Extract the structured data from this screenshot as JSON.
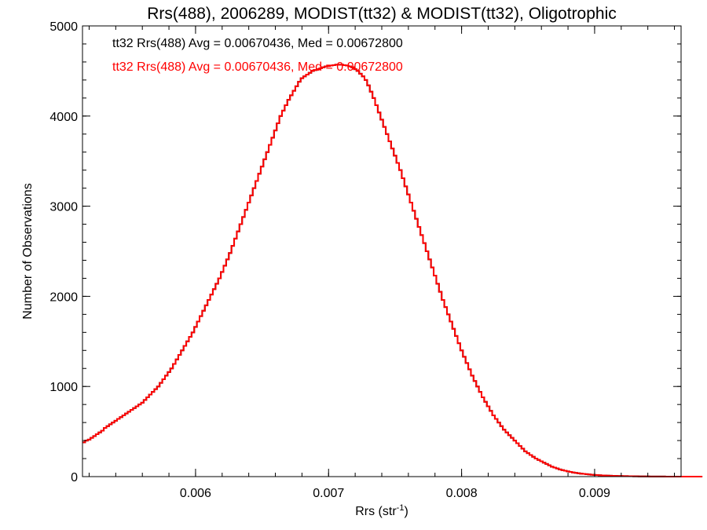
{
  "chart_data": {
    "type": "histogram",
    "title": "Rrs(488), 2006289, MODIST(tt32) & MODIST(tt32), Oligotrophic",
    "xlabel_main": "Rrs (str",
    "xlabel_sup": "-1",
    "xlabel_close": ")",
    "ylabel": "Number of Observations",
    "xlim": [
      0.00515,
      0.00965
    ],
    "ylim": [
      0,
      5000
    ],
    "xticks": [
      0.006,
      0.007,
      0.008,
      0.009
    ],
    "xtick_labels": [
      "0.006",
      "0.007",
      "0.008",
      "0.009"
    ],
    "yticks": [
      0,
      1000,
      2000,
      3000,
      4000,
      5000
    ],
    "ytick_labels": [
      "0",
      "1000",
      "2000",
      "3000",
      "4000",
      "5000"
    ],
    "x_minor_step": 0.0002,
    "y_minor_step": 200,
    "bin_start": 0.00515,
    "bin_width": 2e-05,
    "grid": false,
    "annotations": [
      {
        "text": "tt32 Rrs(488) Avg = 0.00670436, Med = 0.00672800",
        "color": "#000000"
      },
      {
        "text": "tt32 Rrs(488) Avg = 0.00670436, Med = 0.00672800",
        "color": "#ff0000"
      }
    ],
    "series": [
      {
        "color": "#000000",
        "values": [
          380,
          400,
          410,
          430,
          450,
          470,
          490,
          510,
          540,
          560,
          580,
          600,
          620,
          640,
          660,
          680,
          700,
          720,
          740,
          760,
          780,
          800,
          820,
          850,
          880,
          910,
          940,
          970,
          1000,
          1040,
          1080,
          1120,
          1160,
          1200,
          1250,
          1300,
          1350,
          1400,
          1450,
          1500,
          1550,
          1600,
          1660,
          1720,
          1780,
          1840,
          1900,
          1960,
          2020,
          2080,
          2140,
          2200,
          2270,
          2340,
          2410,
          2480,
          2560,
          2640,
          2720,
          2800,
          2880,
          2960,
          3040,
          3120,
          3200,
          3280,
          3360,
          3440,
          3520,
          3600,
          3680,
          3760,
          3840,
          3920,
          4000,
          4060,
          4120,
          4180,
          4230,
          4280,
          4330,
          4380,
          4420,
          4440,
          4460,
          4480,
          4500,
          4510,
          4520,
          4530,
          4540,
          4550,
          4555,
          4560,
          4565,
          4570,
          4570,
          4570,
          4565,
          4560,
          4550,
          4540,
          4520,
          4500,
          4470,
          4440,
          4400,
          4340,
          4270,
          4200,
          4120,
          4040,
          3960,
          3880,
          3800,
          3720,
          3640,
          3560,
          3480,
          3400,
          3310,
          3220,
          3130,
          3040,
          2950,
          2860,
          2770,
          2680,
          2590,
          2500,
          2410,
          2320,
          2230,
          2140,
          2050,
          1960,
          1880,
          1800,
          1720,
          1640,
          1560,
          1480,
          1400,
          1330,
          1260,
          1190,
          1120,
          1060,
          1000,
          940,
          880,
          830,
          780,
          730,
          680,
          640,
          600,
          560,
          520,
          490,
          460,
          430,
          400,
          370,
          340,
          310,
          280,
          260,
          240,
          220,
          200,
          185,
          170,
          155,
          140,
          125,
          110,
          100,
          90,
          80,
          72,
          65,
          58,
          52,
          46,
          41,
          37,
          33,
          30,
          27,
          24,
          21,
          19,
          17,
          15,
          13,
          12,
          11,
          10,
          9,
          8,
          7,
          6,
          5,
          5,
          4,
          4,
          3,
          3,
          2,
          2,
          2,
          2,
          1,
          1,
          1,
          1,
          1,
          1,
          0,
          0,
          0,
          0,
          0,
          0,
          0,
          0,
          0,
          0,
          0,
          0,
          0,
          0
        ]
      },
      {
        "color": "#ff0000",
        "values": [
          380,
          400,
          410,
          430,
          450,
          470,
          490,
          510,
          540,
          560,
          580,
          600,
          620,
          640,
          660,
          680,
          700,
          720,
          740,
          760,
          780,
          800,
          820,
          850,
          880,
          910,
          940,
          970,
          1000,
          1040,
          1080,
          1120,
          1160,
          1200,
          1250,
          1300,
          1350,
          1400,
          1450,
          1500,
          1550,
          1600,
          1660,
          1720,
          1780,
          1840,
          1900,
          1960,
          2020,
          2080,
          2140,
          2200,
          2270,
          2340,
          2410,
          2480,
          2560,
          2640,
          2720,
          2800,
          2880,
          2960,
          3040,
          3120,
          3200,
          3280,
          3360,
          3440,
          3520,
          3600,
          3680,
          3760,
          3840,
          3920,
          4000,
          4060,
          4120,
          4180,
          4230,
          4280,
          4330,
          4380,
          4420,
          4440,
          4460,
          4480,
          4500,
          4510,
          4520,
          4530,
          4540,
          4550,
          4555,
          4560,
          4565,
          4570,
          4570,
          4570,
          4565,
          4560,
          4550,
          4540,
          4520,
          4500,
          4470,
          4440,
          4400,
          4340,
          4270,
          4200,
          4120,
          4040,
          3960,
          3880,
          3800,
          3720,
          3640,
          3560,
          3480,
          3400,
          3310,
          3220,
          3130,
          3040,
          2950,
          2860,
          2770,
          2680,
          2590,
          2500,
          2410,
          2320,
          2230,
          2140,
          2050,
          1960,
          1880,
          1800,
          1720,
          1640,
          1560,
          1480,
          1400,
          1330,
          1260,
          1190,
          1120,
          1060,
          1000,
          940,
          880,
          830,
          780,
          730,
          680,
          640,
          600,
          560,
          520,
          490,
          460,
          430,
          400,
          370,
          340,
          310,
          280,
          260,
          240,
          220,
          200,
          185,
          170,
          155,
          140,
          125,
          110,
          100,
          90,
          80,
          72,
          65,
          58,
          52,
          46,
          41,
          37,
          33,
          30,
          27,
          24,
          21,
          19,
          17,
          15,
          13,
          12,
          11,
          10,
          9,
          8,
          7,
          6,
          5,
          5,
          4,
          4,
          3,
          3,
          2,
          2,
          2,
          2,
          1,
          1,
          1,
          1,
          1,
          1,
          0,
          0,
          0,
          0,
          0,
          0,
          0,
          0,
          0,
          0,
          0,
          0,
          0,
          0
        ]
      }
    ]
  }
}
